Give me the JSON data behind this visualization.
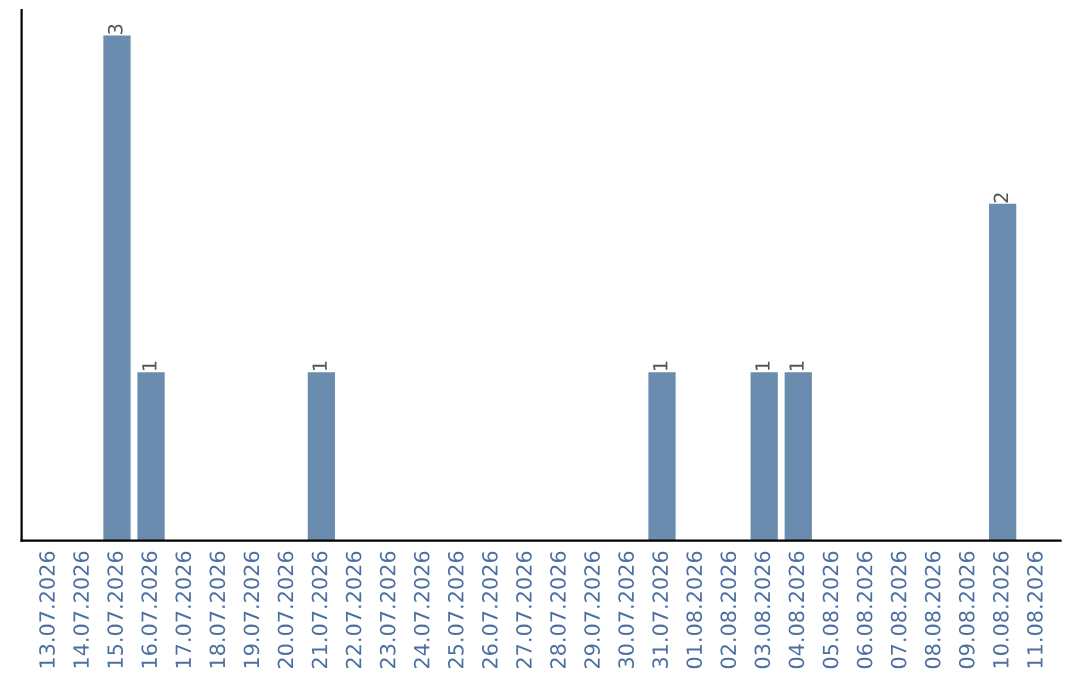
{
  "chart_data": {
    "type": "bar",
    "categories": [
      "13.07.2026",
      "14.07.2026",
      "15.07.2026",
      "16.07.2026",
      "17.07.2026",
      "18.07.2026",
      "19.07.2026",
      "20.07.2026",
      "21.07.2026",
      "22.07.2026",
      "23.07.2026",
      "24.07.2026",
      "25.07.2026",
      "26.07.2026",
      "27.07.2026",
      "28.07.2026",
      "29.07.2026",
      "30.07.2026",
      "31.07.2026",
      "01.08.2026",
      "02.08.2026",
      "03.08.2026",
      "04.08.2026",
      "05.08.2026",
      "06.08.2026",
      "07.08.2026",
      "08.08.2026",
      "09.08.2026",
      "10.08.2026",
      "11.08.2026"
    ],
    "values": [
      null,
      null,
      3,
      1,
      null,
      null,
      null,
      null,
      1,
      null,
      null,
      null,
      null,
      null,
      null,
      null,
      null,
      null,
      1,
      null,
      null,
      1,
      1,
      null,
      null,
      null,
      null,
      null,
      2,
      null
    ],
    "color": "#6a8caf",
    "data_labels": true,
    "tick_labels": "x",
    "grid": false,
    "legend": false
  }
}
